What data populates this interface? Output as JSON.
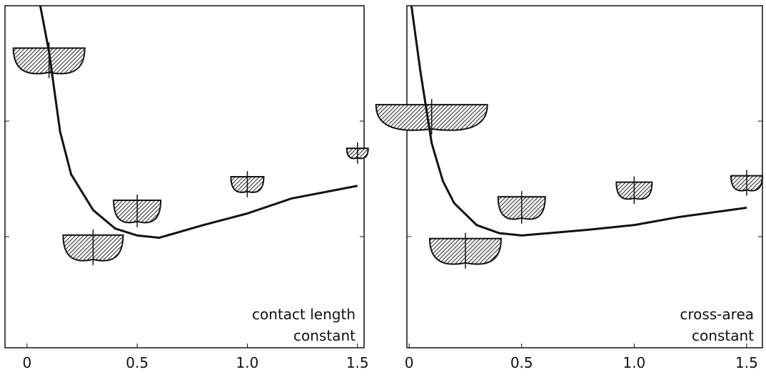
{
  "chart_data": [
    {
      "type": "line",
      "annotation": [
        "contact length",
        "constant"
      ],
      "xlim": [
        -0.1,
        1.53
      ],
      "xticks": [
        0,
        0.5,
        {
          "value": 1,
          "label": "1.0"
        },
        1.5
      ],
      "ylim": [
        0,
        3
      ],
      "yticks": [
        1,
        2
      ],
      "color": "#111111",
      "curve": {
        "x": [
          0.06,
          0.1,
          0.15,
          0.2,
          0.3,
          0.4,
          0.5,
          0.6,
          0.8,
          1.0,
          1.2,
          1.5
        ],
        "y": [
          3.0,
          2.6,
          1.91,
          1.54,
          1.23,
          1.07,
          1.01,
          0.99,
          1.1,
          1.2,
          1.33,
          1.44
        ]
      },
      "points": {
        "x": [
          0.1,
          0.3,
          0.5,
          1.0,
          1.5
        ],
        "y": [
          2.57,
          0.95,
          1.26,
          1.48,
          1.74
        ]
      }
    },
    {
      "type": "line",
      "annotation": [
        "cross-area",
        "constant"
      ],
      "xlim": [
        -0.01,
        1.57
      ],
      "xticks": [
        0,
        0.5,
        {
          "value": 1,
          "label": "1.0"
        },
        1.5
      ],
      "ylim": [
        0,
        3
      ],
      "yticks": [
        1,
        2
      ],
      "color": "#111111",
      "curve": {
        "x": [
          0.01,
          0.05,
          0.1,
          0.15,
          0.2,
          0.3,
          0.4,
          0.5,
          0.8,
          1.0,
          1.2,
          1.5
        ],
        "y": [
          3.0,
          2.43,
          1.81,
          1.48,
          1.29,
          1.1,
          1.03,
          1.01,
          1.06,
          1.1,
          1.17,
          1.25
        ]
      },
      "points": {
        "x": [
          0.1,
          0.25,
          0.5,
          1.0,
          1.5
        ],
        "y": [
          2.08,
          0.92,
          1.29,
          1.43,
          1.49
        ]
      }
    }
  ]
}
